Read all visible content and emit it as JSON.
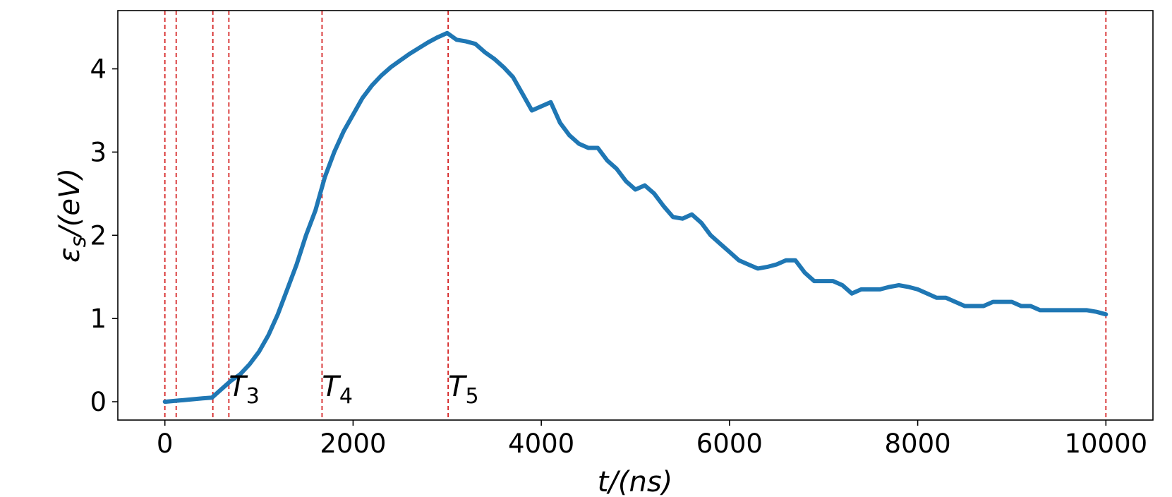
{
  "chart_data": {
    "type": "line",
    "xlabel": "t/(ns)",
    "ylabel": "εs/(eV)",
    "xlim": [
      -500,
      10500
    ],
    "ylim": [
      -0.22,
      4.7
    ],
    "xticks": [
      0,
      2000,
      4000,
      6000,
      8000,
      10000
    ],
    "yticks": [
      0,
      1,
      2,
      3,
      4
    ],
    "grid": false,
    "series": [
      {
        "color": "#1f77b4",
        "x": [
          0,
          100,
          200,
          300,
          400,
          500,
          600,
          700,
          800,
          900,
          1000,
          1100,
          1200,
          1300,
          1400,
          1500,
          1600,
          1700,
          1800,
          1900,
          2000,
          2100,
          2200,
          2300,
          2400,
          2500,
          2600,
          2700,
          2800,
          2900,
          3000,
          3100,
          3200,
          3300,
          3400,
          3500,
          3600,
          3700,
          3800,
          3900,
          4000,
          4100,
          4200,
          4300,
          4400,
          4500,
          4600,
          4700,
          4800,
          4900,
          5000,
          5100,
          5200,
          5300,
          5400,
          5500,
          5600,
          5700,
          5800,
          5900,
          6000,
          6100,
          6200,
          6300,
          6400,
          6500,
          6600,
          6700,
          6800,
          6900,
          7000,
          7100,
          7200,
          7300,
          7400,
          7500,
          7600,
          7700,
          7800,
          7900,
          8000,
          8100,
          8200,
          8300,
          8400,
          8500,
          8600,
          8700,
          8800,
          8900,
          9000,
          9100,
          9200,
          9300,
          9400,
          9500,
          9600,
          9700,
          9800,
          9900,
          10000
        ],
        "y": [
          0.0,
          0.01,
          0.02,
          0.03,
          0.04,
          0.05,
          0.15,
          0.25,
          0.33,
          0.45,
          0.6,
          0.8,
          1.05,
          1.35,
          1.65,
          2.0,
          2.3,
          2.7,
          3.0,
          3.25,
          3.45,
          3.65,
          3.8,
          3.92,
          4.02,
          4.1,
          4.18,
          4.25,
          4.32,
          4.38,
          4.43,
          4.35,
          4.33,
          4.3,
          4.2,
          4.12,
          4.02,
          3.9,
          3.7,
          3.5,
          3.55,
          3.6,
          3.35,
          3.2,
          3.1,
          3.05,
          3.05,
          2.9,
          2.8,
          2.65,
          2.55,
          2.6,
          2.5,
          2.35,
          2.22,
          2.2,
          2.25,
          2.15,
          2.0,
          1.9,
          1.8,
          1.7,
          1.65,
          1.6,
          1.62,
          1.65,
          1.7,
          1.7,
          1.55,
          1.45,
          1.45,
          1.45,
          1.4,
          1.3,
          1.35,
          1.35,
          1.35,
          1.38,
          1.4,
          1.38,
          1.35,
          1.3,
          1.25,
          1.25,
          1.2,
          1.15,
          1.15,
          1.15,
          1.2,
          1.2,
          1.2,
          1.15,
          1.15,
          1.1,
          1.1,
          1.1,
          1.1,
          1.1,
          1.1,
          1.08,
          1.05
        ]
      }
    ],
    "vlines": {
      "color": "#d62728",
      "x": [
        0,
        120,
        510,
        680,
        1670,
        3010,
        10000
      ]
    },
    "annotations": [
      {
        "label": "T",
        "sub": "3",
        "x": 680,
        "y": 0.05
      },
      {
        "label": "T",
        "sub": "4",
        "x": 1670,
        "y": 0.05
      },
      {
        "label": "T",
        "sub": "5",
        "x": 3010,
        "y": 0.05
      }
    ]
  }
}
